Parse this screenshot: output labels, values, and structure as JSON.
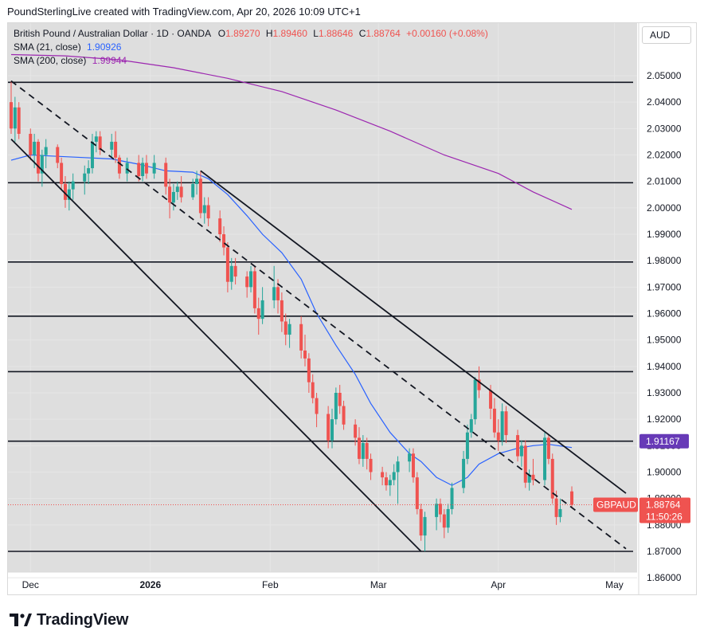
{
  "header": {
    "title": "PoundSterlingLive created with TradingView.com, Apr 20, 2026 10:09 UTC+1"
  },
  "legend": {
    "symbol": "British Pound / Australian Dollar · 1D · OANDA",
    "open_label": "O",
    "open": "1.89270",
    "high_label": "H",
    "high": "1.89460",
    "low_label": "L",
    "low": "1.88646",
    "close_label": "C",
    "close": "1.88764",
    "change": "+0.00160 (+0.08%)",
    "sma21_label": "SMA (21, close)",
    "sma21_value": "1.90926",
    "sma200_label": "SMA (200, close)",
    "sma200_value": "1.99944"
  },
  "currency": "AUD",
  "brand": {
    "name": "TradingView"
  },
  "colors": {
    "up": "#26a69a",
    "down": "#ef5350",
    "sma21": "#2962ff",
    "sma200": "#9c27b0",
    "bg": "#dedede",
    "badge_purple": "#673ab7",
    "badge_red": "#ef5350"
  },
  "chart_data": {
    "type": "candlestick",
    "symbol": "GBPAUD",
    "y_ticks": [
      "2.05000",
      "2.04000",
      "2.03000",
      "2.02000",
      "2.01000",
      "2.00000",
      "1.99000",
      "1.98000",
      "1.97000",
      "1.96000",
      "1.95000",
      "1.94000",
      "1.93000",
      "1.92000",
      "1.91000",
      "1.90000",
      "1.89000",
      "1.88000",
      "1.87000",
      "1.86000"
    ],
    "ylim": [
      1.852,
      2.068
    ],
    "x_labels": [
      {
        "label": "Dec",
        "date": "2025-12-01"
      },
      {
        "label": "2026",
        "date": "2026-01-01"
      },
      {
        "label": "Feb",
        "date": "2026-02-01"
      },
      {
        "label": "Mar",
        "date": "2026-03-01"
      },
      {
        "label": "Apr",
        "date": "2026-04-01"
      },
      {
        "label": "May",
        "date": "2026-05-01"
      }
    ],
    "x_range": [
      "2025-11-26",
      "2026-05-04"
    ],
    "horizontal_levels": [
      2.0475,
      2.0095,
      1.9795,
      1.959,
      1.938,
      1.9117,
      1.87
    ],
    "last_price": {
      "label": "GBPAUD",
      "value": "1.88764",
      "countdown": "11:50:26"
    },
    "level_badge": {
      "value": "1.91167"
    },
    "ohlc": [
      [
        "2025-11-26",
        2.04,
        2.048,
        2.028,
        2.03
      ],
      [
        "2025-11-27",
        2.03,
        2.042,
        2.025,
        2.038
      ],
      [
        "2025-11-28",
        2.038,
        2.04,
        2.026,
        2.028
      ],
      [
        "2025-12-01",
        2.028,
        2.03,
        2.018,
        2.02
      ],
      [
        "2025-12-02",
        2.02,
        2.028,
        2.015,
        2.025
      ],
      [
        "2025-12-03",
        2.025,
        2.026,
        2.01,
        2.013
      ],
      [
        "2025-12-04",
        2.013,
        2.022,
        2.008,
        2.02
      ],
      [
        "2025-12-05",
        2.02,
        2.026,
        2.015,
        2.023
      ],
      [
        "2025-12-08",
        2.023,
        2.024,
        2.015,
        2.017
      ],
      [
        "2025-12-09",
        2.017,
        2.019,
        2.007,
        2.009
      ],
      [
        "2025-12-10",
        2.009,
        2.012,
        2.0,
        2.003
      ],
      [
        "2025-12-11",
        2.003,
        2.01,
        1.999,
        2.007
      ],
      [
        "2025-12-12",
        2.007,
        2.013,
        2.003,
        2.01
      ],
      [
        "2025-12-15",
        2.01,
        2.016,
        2.005,
        2.013
      ],
      [
        "2025-12-16",
        2.013,
        2.018,
        2.009,
        2.015
      ],
      [
        "2025-12-17",
        2.015,
        2.028,
        2.013,
        2.025
      ],
      [
        "2025-12-18",
        2.025,
        2.029,
        2.021,
        2.027
      ],
      [
        "2025-12-19",
        2.027,
        2.029,
        2.02,
        2.022
      ],
      [
        "2025-12-22",
        2.022,
        2.028,
        2.019,
        2.025
      ],
      [
        "2025-12-23",
        2.025,
        2.029,
        2.017,
        2.019
      ],
      [
        "2025-12-24",
        2.019,
        2.02,
        2.011,
        2.013
      ],
      [
        "2025-12-26",
        2.013,
        2.019,
        2.01,
        2.017
      ],
      [
        "2025-12-29",
        2.017,
        2.02,
        2.01,
        2.012
      ],
      [
        "2025-12-30",
        2.012,
        2.019,
        2.01,
        2.017
      ],
      [
        "2025-12-31",
        2.017,
        2.02,
        2.011,
        2.013
      ],
      [
        "2026-01-02",
        2.013,
        2.02,
        2.011,
        2.017
      ],
      [
        "2026-01-05",
        2.017,
        2.019,
        2.005,
        2.008
      ],
      [
        "2026-01-06",
        2.008,
        2.011,
        1.996,
        2.002
      ],
      [
        "2026-01-07",
        2.002,
        2.009,
        1.999,
        2.006
      ],
      [
        "2026-01-08",
        2.006,
        2.01,
        2.003,
        2.008
      ],
      [
        "2026-01-09",
        2.008,
        2.012,
        2.002,
        2.004
      ],
      [
        "2026-01-12",
        2.004,
        2.011,
        2.003,
        2.009
      ],
      [
        "2026-01-13",
        2.009,
        2.014,
        2.005,
        2.011
      ],
      [
        "2026-01-14",
        2.011,
        2.014,
        1.996,
        1.998
      ],
      [
        "2026-01-15",
        1.998,
        2.004,
        1.994,
        2.001
      ],
      [
        "2026-01-16",
        2.001,
        2.004,
        1.993,
        1.996
      ],
      [
        "2026-01-19",
        1.996,
        1.999,
        1.987,
        1.99
      ],
      [
        "2026-01-20",
        1.99,
        1.993,
        1.982,
        1.985
      ],
      [
        "2026-01-21",
        1.985,
        1.987,
        1.968,
        1.972
      ],
      [
        "2026-01-22",
        1.972,
        1.981,
        1.969,
        1.978
      ],
      [
        "2026-01-23",
        1.978,
        1.981,
        1.971,
        1.974
      ],
      [
        "2026-01-26",
        1.974,
        1.976,
        1.966,
        1.97
      ],
      [
        "2026-01-27",
        1.97,
        1.978,
        1.968,
        1.976
      ],
      [
        "2026-01-28",
        1.976,
        1.978,
        1.96,
        1.962
      ],
      [
        "2026-01-29",
        1.962,
        1.966,
        1.952,
        1.958
      ],
      [
        "2026-01-30",
        1.958,
        1.97,
        1.956,
        1.965
      ],
      [
        "2026-02-02",
        1.965,
        1.978,
        1.962,
        1.97
      ],
      [
        "2026-02-03",
        1.97,
        1.973,
        1.96,
        1.965
      ],
      [
        "2026-02-04",
        1.965,
        1.968,
        1.953,
        1.957
      ],
      [
        "2026-02-05",
        1.957,
        1.96,
        1.948,
        1.952
      ],
      [
        "2026-02-06",
        1.952,
        1.958,
        1.947,
        1.956
      ],
      [
        "2026-02-09",
        1.956,
        1.959,
        1.943,
        1.946
      ],
      [
        "2026-02-10",
        1.946,
        1.952,
        1.94,
        1.943
      ],
      [
        "2026-02-11",
        1.943,
        1.945,
        1.93,
        1.934
      ],
      [
        "2026-02-12",
        1.934,
        1.937,
        1.926,
        1.928
      ],
      [
        "2026-02-13",
        1.928,
        1.93,
        1.917,
        1.922
      ],
      [
        "2026-02-16",
        1.922,
        1.925,
        1.909,
        1.912
      ],
      [
        "2026-02-17",
        1.912,
        1.924,
        1.909,
        1.92
      ],
      [
        "2026-02-18",
        1.92,
        1.932,
        1.918,
        1.93
      ],
      [
        "2026-02-19",
        1.93,
        1.933,
        1.922,
        1.925
      ],
      [
        "2026-02-20",
        1.925,
        1.927,
        1.916,
        1.918
      ],
      [
        "2026-02-23",
        1.918,
        1.92,
        1.91,
        1.913
      ],
      [
        "2026-02-24",
        1.913,
        1.917,
        1.903,
        1.905
      ],
      [
        "2026-02-25",
        1.905,
        1.914,
        1.902,
        1.911
      ],
      [
        "2026-02-26",
        1.911,
        1.913,
        1.901,
        1.905
      ],
      [
        "2026-02-27",
        1.905,
        1.907,
        1.897,
        1.9
      ],
      [
        "2026-03-02",
        1.9,
        1.902,
        1.895,
        1.898
      ],
      [
        "2026-03-03",
        1.898,
        1.9,
        1.893,
        1.895
      ],
      [
        "2026-03-04",
        1.895,
        1.899,
        1.891,
        1.897
      ],
      [
        "2026-03-05",
        1.897,
        1.903,
        1.895,
        1.9
      ],
      [
        "2026-03-06",
        1.9,
        1.906,
        1.888,
        1.904
      ],
      [
        "2026-03-09",
        1.904,
        1.909,
        1.9,
        1.907
      ],
      [
        "2026-03-10",
        1.907,
        1.909,
        1.896,
        1.898
      ],
      [
        "2026-03-11",
        1.898,
        1.9,
        1.884,
        1.886
      ],
      [
        "2026-03-12",
        1.886,
        1.888,
        1.874,
        1.876
      ],
      [
        "2026-03-13",
        1.876,
        1.885,
        1.87,
        1.883
      ],
      [
        "2026-03-16",
        1.883,
        1.89,
        1.878,
        1.888
      ],
      [
        "2026-03-17",
        1.888,
        1.89,
        1.881,
        1.884
      ],
      [
        "2026-03-18",
        1.884,
        1.886,
        1.875,
        1.879
      ],
      [
        "2026-03-19",
        1.879,
        1.888,
        1.877,
        1.886
      ],
      [
        "2026-03-20",
        1.886,
        1.896,
        1.884,
        1.894
      ],
      [
        "2026-03-23",
        1.894,
        1.908,
        1.892,
        1.905
      ],
      [
        "2026-03-24",
        1.905,
        1.918,
        1.903,
        1.915
      ],
      [
        "2026-03-25",
        1.915,
        1.922,
        1.913,
        1.92
      ],
      [
        "2026-03-26",
        1.92,
        1.936,
        1.918,
        1.935
      ],
      [
        "2026-03-27",
        1.935,
        1.94,
        1.928,
        1.931
      ],
      [
        "2026-03-30",
        1.931,
        1.933,
        1.92,
        1.924
      ],
      [
        "2026-03-31",
        1.924,
        1.928,
        1.913,
        1.915
      ],
      [
        "2026-04-01",
        1.915,
        1.92,
        1.908,
        1.912
      ],
      [
        "2026-04-02",
        1.912,
        1.926,
        1.91,
        1.923
      ],
      [
        "2026-04-03",
        1.923,
        1.925,
        1.911,
        1.914
      ],
      [
        "2026-04-06",
        1.914,
        1.916,
        1.904,
        1.906
      ],
      [
        "2026-04-07",
        1.906,
        1.912,
        1.902,
        1.91
      ],
      [
        "2026-04-08",
        1.91,
        1.912,
        1.894,
        1.896
      ],
      [
        "2026-04-09",
        1.896,
        1.901,
        1.893,
        1.899
      ],
      [
        "2026-04-10",
        1.899,
        1.905,
        1.895,
        1.897
      ],
      [
        "2026-04-13",
        1.897,
        1.915,
        1.895,
        1.913
      ],
      [
        "2026-04-14",
        1.913,
        1.914,
        1.903,
        1.905
      ],
      [
        "2026-04-15",
        1.905,
        1.907,
        1.888,
        1.89
      ],
      [
        "2026-04-16",
        1.89,
        1.893,
        1.88,
        1.883
      ],
      [
        "2026-04-17",
        1.883,
        1.89,
        1.881,
        1.886
      ],
      [
        "2026-04-20",
        1.8927,
        1.8946,
        1.8865,
        1.8876
      ]
    ],
    "sma21": [
      [
        "2025-11-26",
        2.018
      ],
      [
        "2025-12-01",
        2.02
      ],
      [
        "2025-12-08",
        2.0195
      ],
      [
        "2025-12-15",
        2.019
      ],
      [
        "2025-12-22",
        2.0185
      ],
      [
        "2025-12-29",
        2.0165
      ],
      [
        "2026-01-05",
        2.014
      ],
      [
        "2026-01-12",
        2.0135
      ],
      [
        "2026-01-16",
        2.011
      ],
      [
        "2026-01-21",
        2.005
      ],
      [
        "2026-01-26",
        1.997
      ],
      [
        "2026-01-30",
        1.99
      ],
      [
        "2026-02-04",
        1.983
      ],
      [
        "2026-02-09",
        1.973
      ],
      [
        "2026-02-13",
        1.96
      ],
      [
        "2026-02-18",
        1.948
      ],
      [
        "2026-02-23",
        1.937
      ],
      [
        "2026-02-27",
        1.926
      ],
      [
        "2026-03-04",
        1.915
      ],
      [
        "2026-03-09",
        1.907
      ],
      [
        "2026-03-12",
        1.904
      ],
      [
        "2026-03-16",
        1.898
      ],
      [
        "2026-03-20",
        1.895
      ],
      [
        "2026-03-24",
        1.898
      ],
      [
        "2026-03-27",
        1.903
      ],
      [
        "2026-04-01",
        1.907
      ],
      [
        "2026-04-06",
        1.909
      ],
      [
        "2026-04-10",
        1.91
      ],
      [
        "2026-04-14",
        1.9105
      ],
      [
        "2026-04-20",
        1.9093
      ]
    ],
    "sma200": [
      [
        "2025-11-26",
        2.058
      ],
      [
        "2025-12-10",
        2.0575
      ],
      [
        "2025-12-24",
        2.056
      ],
      [
        "2026-01-07",
        2.053
      ],
      [
        "2026-01-21",
        2.049
      ],
      [
        "2026-02-04",
        2.044
      ],
      [
        "2026-02-18",
        2.037
      ],
      [
        "2026-03-04",
        2.029
      ],
      [
        "2026-03-18",
        2.02
      ],
      [
        "2026-04-01",
        2.013
      ],
      [
        "2026-04-10",
        2.006
      ],
      [
        "2026-04-20",
        1.9994
      ]
    ],
    "trendlines": [
      {
        "style": "dashed",
        "from": [
          "2025-11-26",
          2.048
        ],
        "to": [
          "2026-05-04",
          1.871
        ]
      },
      {
        "style": "solid",
        "from": [
          "2025-11-26",
          2.026
        ],
        "to": [
          "2026-03-12",
          1.87
        ]
      },
      {
        "style": "solid",
        "from": [
          "2026-01-14",
          2.014
        ],
        "to": [
          "2026-05-04",
          1.892
        ]
      }
    ]
  }
}
